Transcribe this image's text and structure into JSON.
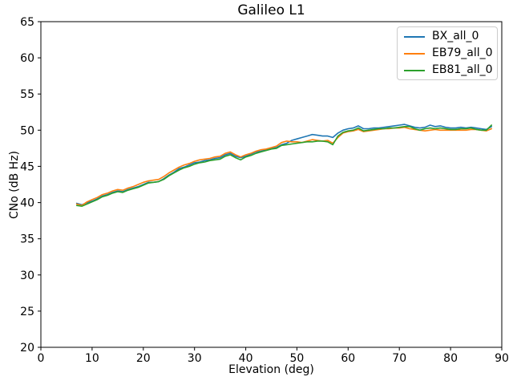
{
  "chart_data": {
    "type": "line",
    "title": "Galileo L1",
    "xlabel": "Elevation (deg)",
    "ylabel": "CNo (dB Hz)",
    "xlim": [
      0,
      90
    ],
    "ylim": [
      20,
      65
    ],
    "xticks": [
      0,
      10,
      20,
      30,
      40,
      50,
      60,
      70,
      80,
      90
    ],
    "yticks": [
      20,
      25,
      30,
      35,
      40,
      45,
      50,
      55,
      60,
      65
    ],
    "grid": false,
    "legend_position": "upper right",
    "x": [
      7,
      8,
      9,
      10,
      11,
      12,
      13,
      14,
      15,
      16,
      17,
      18,
      19,
      20,
      21,
      22,
      23,
      24,
      25,
      26,
      27,
      28,
      29,
      30,
      31,
      32,
      33,
      34,
      35,
      36,
      37,
      38,
      39,
      40,
      41,
      42,
      43,
      44,
      45,
      46,
      47,
      48,
      49,
      50,
      51,
      52,
      53,
      54,
      55,
      56,
      57,
      58,
      59,
      60,
      61,
      62,
      63,
      64,
      65,
      66,
      67,
      68,
      69,
      70,
      71,
      72,
      73,
      74,
      75,
      76,
      77,
      78,
      79,
      80,
      81,
      82,
      83,
      84,
      85,
      86,
      87,
      88
    ],
    "series": [
      {
        "name": "BX_all_0",
        "color": "#1f77b4",
        "values": [
          39.9,
          39.7,
          40.0,
          40.2,
          40.5,
          40.9,
          41.1,
          41.4,
          41.6,
          41.5,
          41.8,
          42.0,
          42.2,
          42.5,
          42.8,
          42.8,
          42.9,
          43.3,
          43.8,
          44.2,
          44.7,
          44.9,
          45.2,
          45.5,
          45.6,
          45.8,
          45.9,
          46.1,
          46.2,
          46.6,
          46.8,
          46.4,
          46.2,
          46.4,
          46.7,
          47.0,
          47.1,
          47.3,
          47.5,
          47.6,
          48.0,
          48.2,
          48.6,
          48.8,
          49.0,
          49.2,
          49.4,
          49.3,
          49.2,
          49.2,
          49.0,
          49.6,
          50.0,
          50.2,
          50.3,
          50.6,
          50.2,
          50.2,
          50.3,
          50.3,
          50.4,
          50.5,
          50.6,
          50.7,
          50.8,
          50.6,
          50.4,
          50.3,
          50.4,
          50.7,
          50.5,
          50.6,
          50.4,
          50.3,
          50.3,
          50.4,
          50.3,
          50.4,
          50.3,
          50.2,
          50.1,
          50.5
        ]
      },
      {
        "name": "EB79_all_0",
        "color": "#ff7f0e",
        "values": [
          39.8,
          39.6,
          40.1,
          40.4,
          40.7,
          41.1,
          41.3,
          41.6,
          41.8,
          41.7,
          42.0,
          42.2,
          42.5,
          42.8,
          43.0,
          43.1,
          43.2,
          43.6,
          44.1,
          44.5,
          44.9,
          45.2,
          45.4,
          45.7,
          45.9,
          46.0,
          46.1,
          46.3,
          46.4,
          46.8,
          47.0,
          46.6,
          46.3,
          46.6,
          46.8,
          47.1,
          47.3,
          47.4,
          47.6,
          47.8,
          48.3,
          48.5,
          48.4,
          48.4,
          48.3,
          48.5,
          48.7,
          48.6,
          48.5,
          48.6,
          48.2,
          49.0,
          49.6,
          49.8,
          49.9,
          50.1,
          49.8,
          49.9,
          50.0,
          50.1,
          50.2,
          50.2,
          50.3,
          50.3,
          50.4,
          50.2,
          50.1,
          50.0,
          49.9,
          50.0,
          50.1,
          50.0,
          50.0,
          50.0,
          50.0,
          50.0,
          50.0,
          50.1,
          50.1,
          50.0,
          49.9,
          50.2
        ]
      },
      {
        "name": "EB81_all_0",
        "color": "#2ca02c",
        "values": [
          39.6,
          39.5,
          39.8,
          40.1,
          40.4,
          40.8,
          41.0,
          41.3,
          41.5,
          41.4,
          41.7,
          41.9,
          42.1,
          42.4,
          42.7,
          42.8,
          42.9,
          43.2,
          43.7,
          44.1,
          44.5,
          44.8,
          45.0,
          45.3,
          45.5,
          45.6,
          45.8,
          45.9,
          46.0,
          46.4,
          46.6,
          46.2,
          45.9,
          46.3,
          46.5,
          46.8,
          47.0,
          47.2,
          47.4,
          47.5,
          47.9,
          48.0,
          48.1,
          48.2,
          48.3,
          48.4,
          48.4,
          48.5,
          48.5,
          48.4,
          48.0,
          49.2,
          49.7,
          49.9,
          50.0,
          50.3,
          49.9,
          50.0,
          50.1,
          50.2,
          50.2,
          50.3,
          50.3,
          50.4,
          50.5,
          50.5,
          50.2,
          50.0,
          50.2,
          50.3,
          50.2,
          50.3,
          50.2,
          50.1,
          50.1,
          50.2,
          50.2,
          50.3,
          50.1,
          50.0,
          50.0,
          50.7
        ]
      }
    ]
  }
}
